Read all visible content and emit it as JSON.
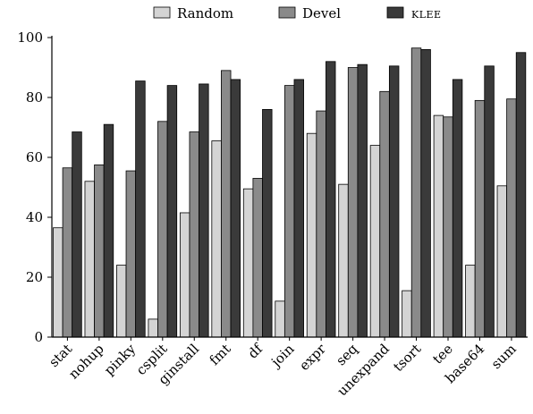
{
  "chart_data": {
    "type": "bar",
    "title": "",
    "xlabel": "",
    "ylabel": "",
    "ylim": [
      0,
      100
    ],
    "yticks": [
      0,
      20,
      40,
      60,
      80,
      100
    ],
    "grid": false,
    "legend": "top-center",
    "categories": [
      "stat",
      "nohup",
      "pinky",
      "csplit",
      "ginstall",
      "fmt",
      "df",
      "join",
      "expr",
      "seq",
      "unexpand",
      "tsort",
      "tee",
      "base64",
      "sum"
    ],
    "series": [
      {
        "name": "Random",
        "color": "#d4d4d4",
        "values": [
          36.5,
          52,
          24,
          6,
          41.5,
          65.5,
          49.5,
          12,
          68,
          51,
          64,
          15.5,
          74,
          24,
          50.5
        ]
      },
      {
        "name": "Devel",
        "color": "#8a8a8a",
        "values": [
          56.5,
          57.5,
          55.5,
          72,
          68.5,
          89,
          53,
          84,
          75.5,
          90,
          82,
          96.5,
          73.5,
          79,
          79.5
        ]
      },
      {
        "name": "KLEE",
        "color": "#3a3a3a",
        "values": [
          68.5,
          71,
          85.5,
          84,
          84.5,
          86,
          76,
          86,
          92,
          91,
          90.5,
          96,
          86,
          90.5,
          95
        ]
      }
    ]
  }
}
